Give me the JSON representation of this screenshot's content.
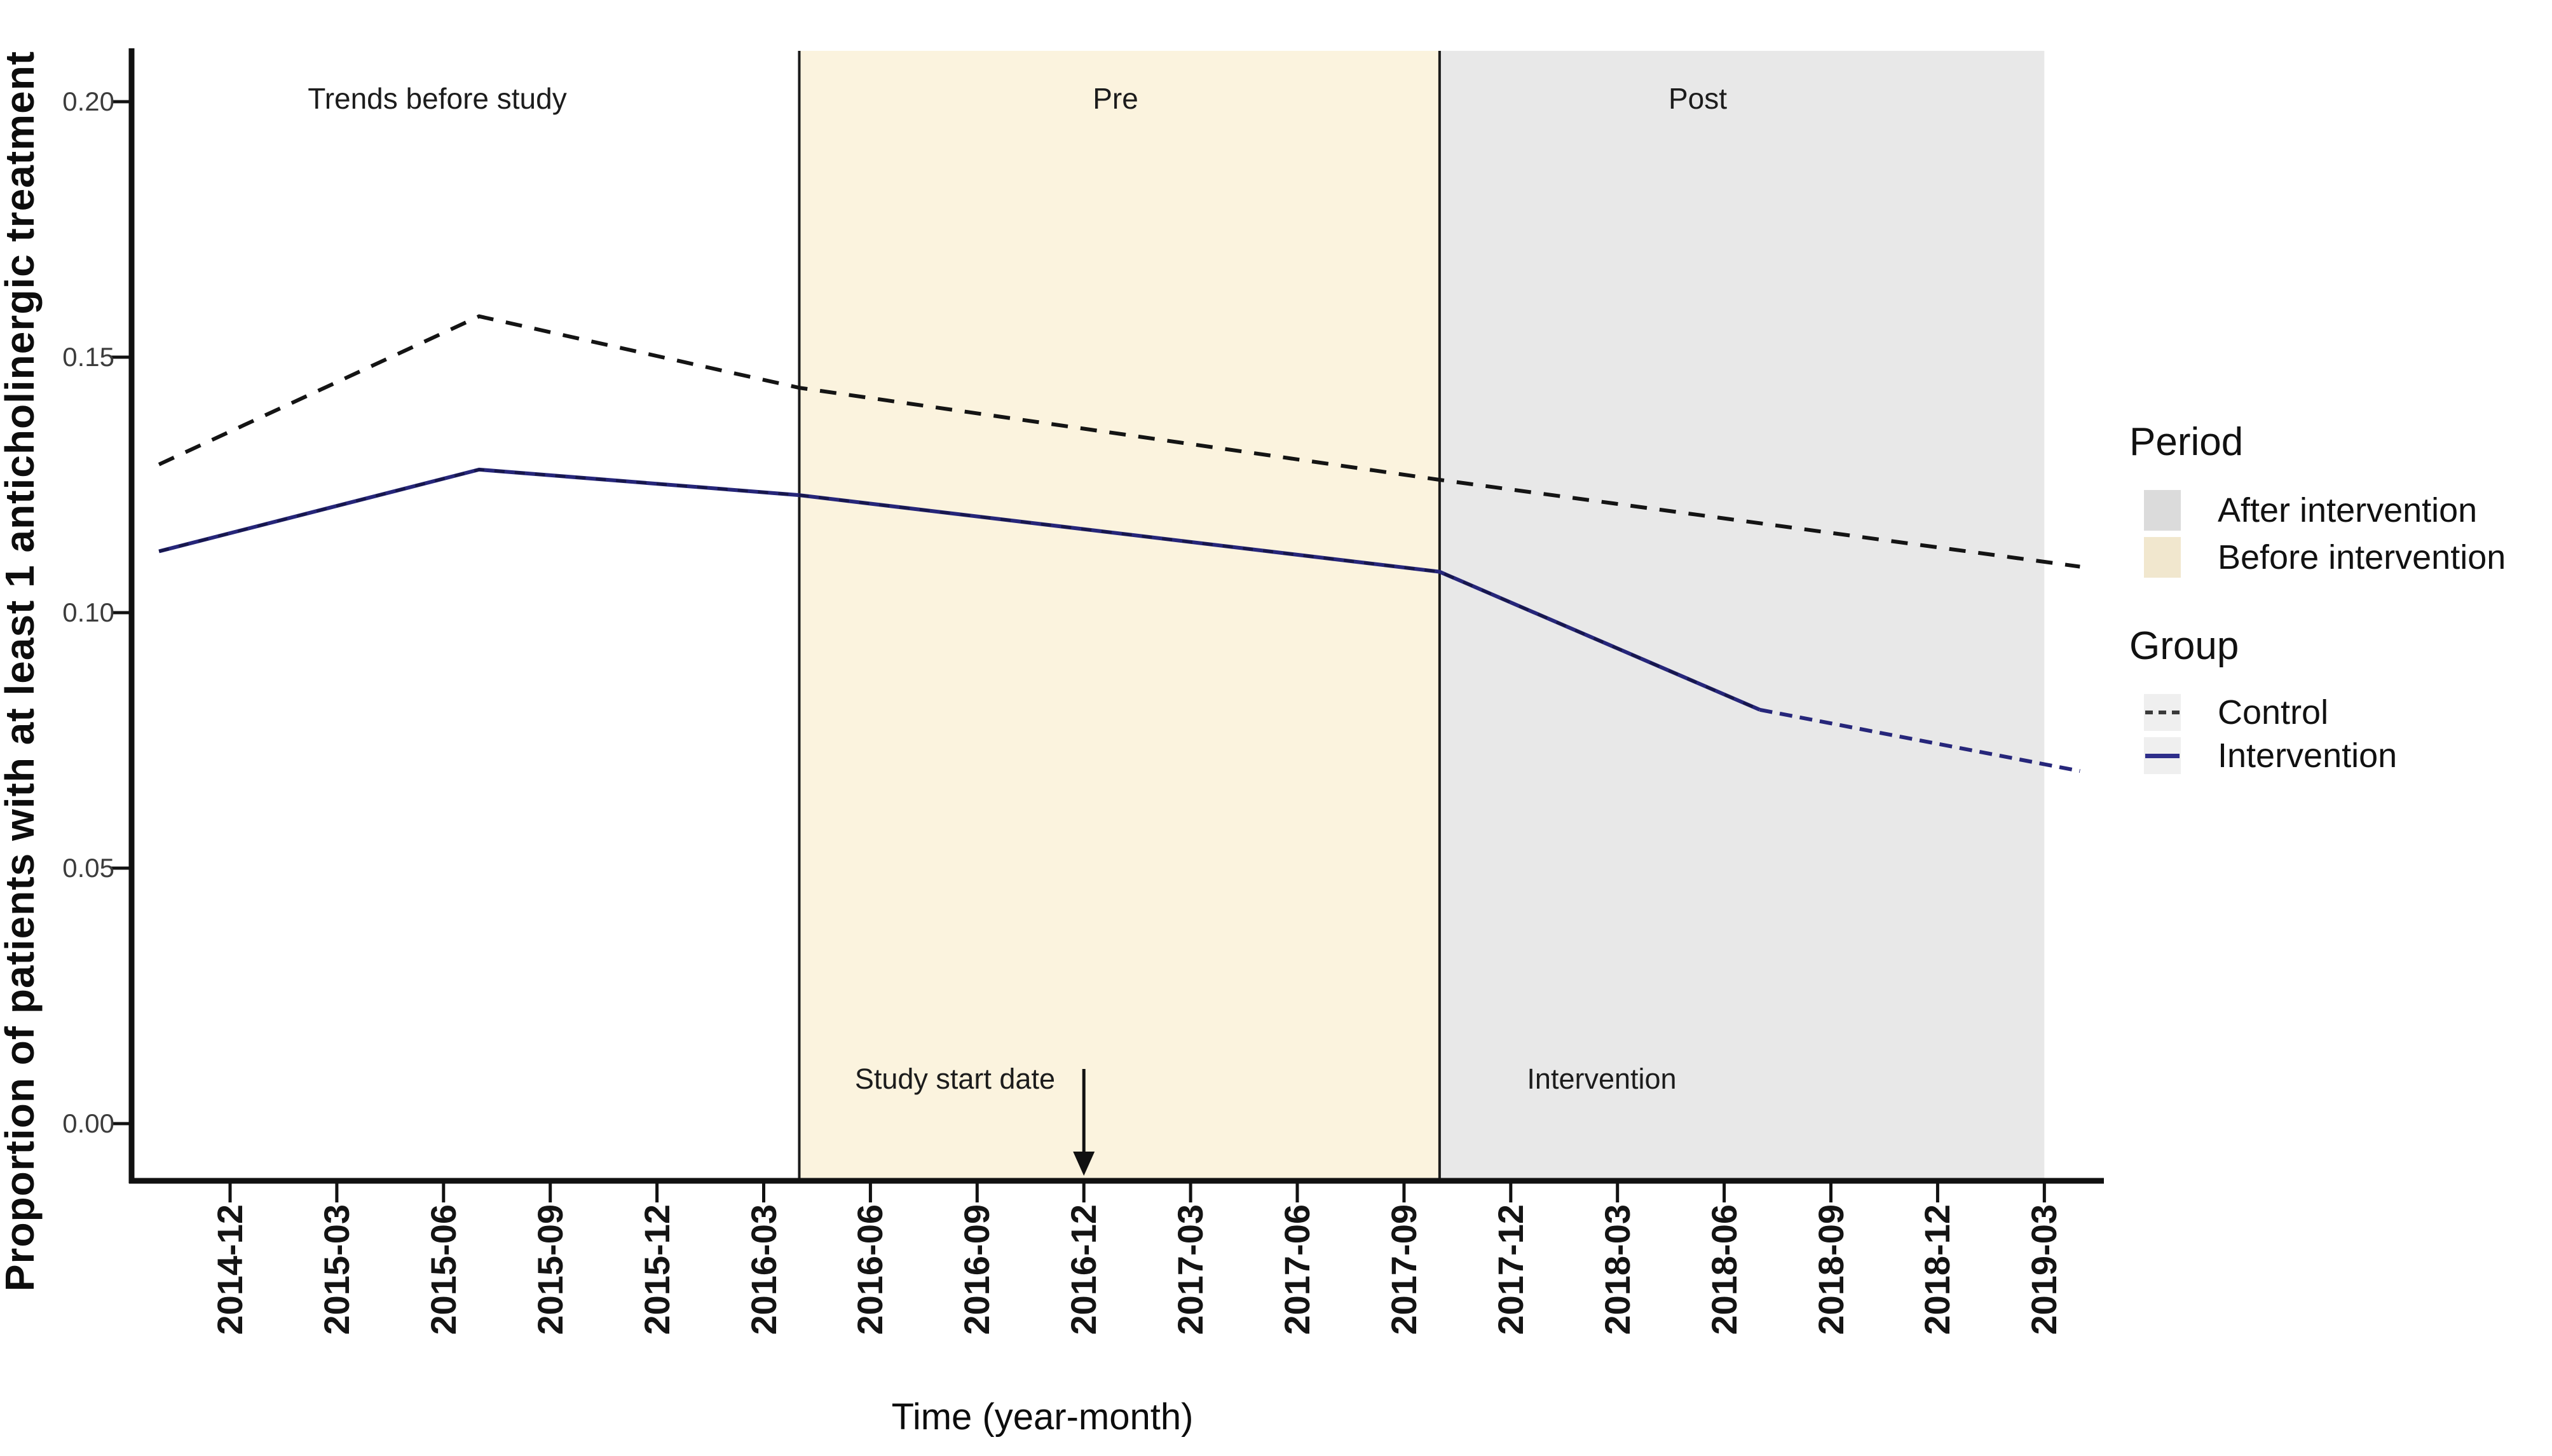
{
  "labels": {
    "y_title": "Proportion of patients with at least 1 anticholinergic treatment",
    "x_title": "Time (year-month)"
  },
  "annotations": {
    "trends": "Trends before study",
    "pre": "Pre",
    "post": "Post",
    "study_start": "Study start date",
    "intervention": "Intervention"
  },
  "legend": {
    "period_title": "Period",
    "after_label": "After intervention",
    "before_label": "Before intervention",
    "group_title": "Group",
    "control_label": "Control",
    "intervention_label": "Intervention"
  },
  "colors": {
    "before_region": "#fbf3de",
    "after_region": "#e8e8e8",
    "legend_after_swatch": "#dbdbdb",
    "legend_before_swatch": "#f1e7ce",
    "control_line": "#141414",
    "intervention_line": "#26267a",
    "axis": "#111111"
  },
  "chart_data": {
    "type": "line",
    "title": "",
    "xlabel": "Time (year-month)",
    "ylabel": "Proportion of patients with at least 1 anticholinergic treatment",
    "x_tick_labels": [
      "2014-12",
      "2015-03",
      "2015-06",
      "2015-09",
      "2015-12",
      "2016-03",
      "2016-06",
      "2016-09",
      "2016-12",
      "2017-03",
      "2017-06",
      "2017-09",
      "2017-12",
      "2018-03",
      "2018-06",
      "2018-09",
      "2018-12",
      "2019-03"
    ],
    "y_tick_labels": [
      "0.00",
      "0.05",
      "0.10",
      "0.15",
      "0.20"
    ],
    "y_tick_values": [
      0,
      0.05,
      0.1,
      0.15,
      0.2
    ],
    "ylim": [
      -0.011,
      0.21
    ],
    "grid": false,
    "legend_position": "right",
    "series": [
      {
        "name": "Control",
        "group": "Control",
        "style": "dashed",
        "color": "#141414",
        "points": [
          [
            "2014-10",
            0.129
          ],
          [
            "2015-07",
            0.158
          ],
          [
            "2016-04",
            0.144
          ],
          [
            "2017-10",
            0.126
          ],
          [
            "2019-04",
            0.109
          ]
        ]
      },
      {
        "name": "Intervention (observed/fitted)",
        "group": "Intervention",
        "style": "solid",
        "overlay_dashes": true,
        "color": "#26267a",
        "points": [
          [
            "2014-10",
            0.112
          ],
          [
            "2015-07",
            0.128
          ],
          [
            "2016-04",
            0.123
          ],
          [
            "2017-10",
            0.108
          ],
          [
            "2018-07",
            0.081
          ]
        ]
      },
      {
        "name": "Intervention (post trend)",
        "group": "Intervention",
        "style": "dashed",
        "color": "#26267a",
        "points": [
          [
            "2018-07",
            0.081
          ],
          [
            "2019-04",
            0.069
          ]
        ]
      }
    ],
    "regions": [
      {
        "label": "Before intervention",
        "from": "2016-04",
        "to": "2017-10",
        "color": "#fbf3de"
      },
      {
        "label": "After intervention",
        "from": "2017-10",
        "to": "2019-03",
        "color": "#e8e8e8"
      }
    ],
    "vlines": [
      "2016-04",
      "2017-10"
    ],
    "annotations": [
      {
        "text": "Trends before study",
        "x": "2015-06",
        "y": 0.2
      },
      {
        "text": "Pre",
        "x": "2016-12",
        "y": 0.2
      },
      {
        "text": "Post",
        "x": "2018-05",
        "y": 0.2
      },
      {
        "text": "Study start date",
        "x": "2016-10",
        "y": 0.004,
        "arrow_to": "2016-12"
      },
      {
        "text": "Intervention",
        "x": "2018-01",
        "y": 0.004
      }
    ]
  }
}
